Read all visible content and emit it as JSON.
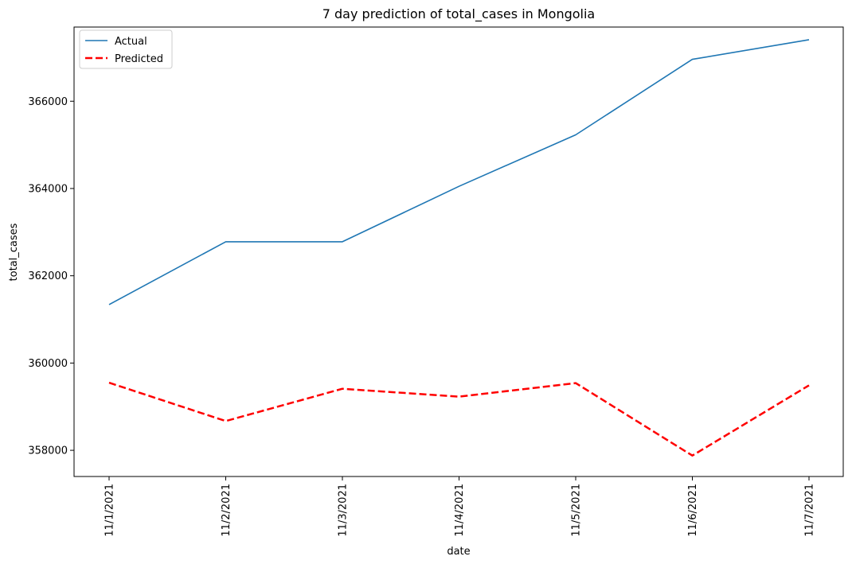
{
  "chart_data": {
    "type": "line",
    "title": "7 day prediction of total_cases in Mongolia",
    "xlabel": "date",
    "ylabel": "total_cases",
    "categories": [
      "11/1/2021",
      "11/2/2021",
      "11/3/2021",
      "11/4/2021",
      "11/5/2021",
      "11/6/2021",
      "11/7/2021"
    ],
    "yticks": [
      358000,
      360000,
      362000,
      364000,
      366000
    ],
    "ylim": [
      357400,
      367700
    ],
    "grid": false,
    "legend_position": "top-left",
    "series": [
      {
        "name": "Actual",
        "color": "#1f77b4",
        "style": "solid",
        "values": [
          361340,
          362780,
          362780,
          364050,
          365230,
          366960,
          367410
        ]
      },
      {
        "name": "Predicted",
        "color": "#ff0000",
        "style": "dashed",
        "values": [
          359550,
          358670,
          359410,
          359230,
          359540,
          357880,
          359490
        ]
      }
    ]
  }
}
